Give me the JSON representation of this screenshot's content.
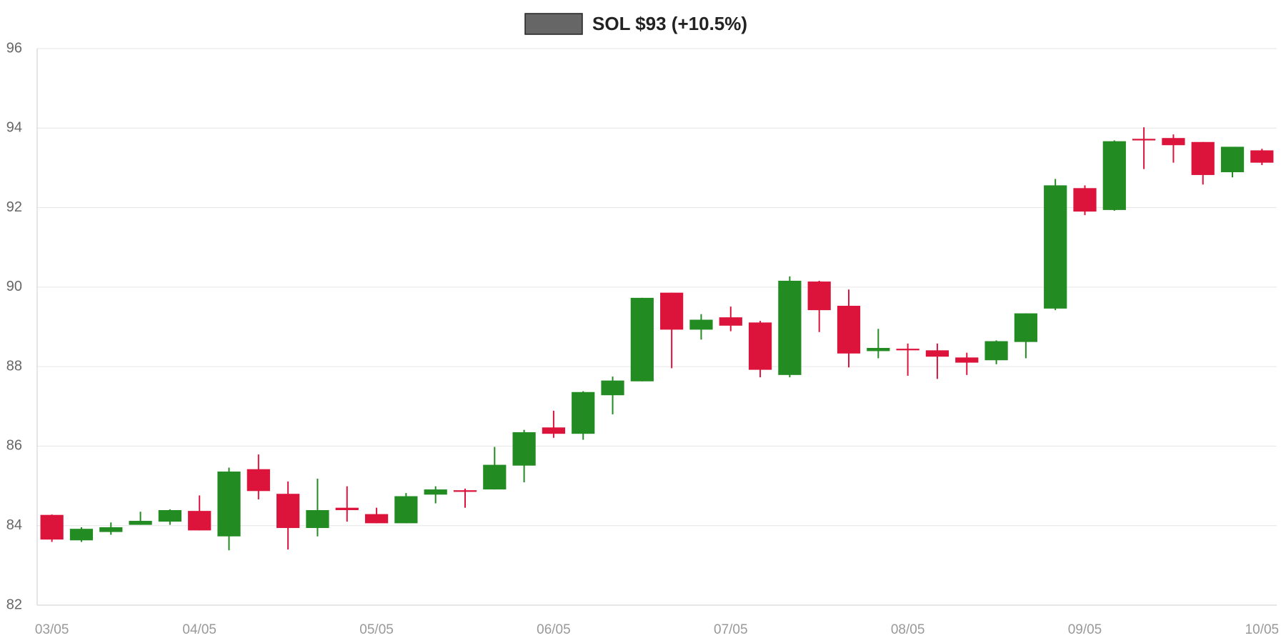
{
  "chart_data": {
    "type": "candlestick",
    "categories": [
      "03/05",
      null,
      null,
      null,
      null,
      "04/05",
      null,
      null,
      null,
      null,
      null,
      "05/05",
      null,
      null,
      null,
      null,
      null,
      "06/05",
      null,
      null,
      null,
      null,
      null,
      "07/05",
      null,
      null,
      null,
      null,
      null,
      "08/05",
      null,
      null,
      null,
      null,
      null,
      "09/05",
      null,
      null,
      null,
      null,
      null,
      "10/05"
    ],
    "series": [
      {
        "name": "SOL $93 (+10.5%)",
        "color": "#666666",
        "open": [
          84.27,
          83.63,
          83.84,
          84.02,
          84.1,
          84.37,
          83.73,
          85.42,
          84.8,
          83.94,
          84.45,
          84.29,
          84.06,
          84.78,
          84.89,
          84.91,
          85.51,
          86.47,
          86.31,
          87.28,
          87.63,
          89.86,
          88.93,
          89.24,
          89.11,
          87.79,
          90.14,
          89.53,
          88.39,
          88.45,
          88.41,
          88.23,
          88.16,
          88.62,
          89.46,
          92.49,
          91.94,
          93.73,
          93.75,
          93.65,
          92.89,
          93.44
        ],
        "high": [
          84.28,
          83.96,
          84.08,
          84.35,
          84.41,
          84.76,
          85.46,
          85.79,
          85.11,
          85.18,
          84.99,
          84.45,
          84.82,
          84.99,
          84.93,
          85.98,
          86.41,
          86.89,
          87.38,
          87.75,
          89.73,
          89.86,
          89.32,
          89.51,
          89.15,
          90.27,
          90.16,
          89.94,
          88.95,
          88.58,
          88.58,
          88.35,
          88.66,
          89.34,
          92.72,
          92.56,
          93.69,
          94.02,
          93.84,
          93.65,
          93.53,
          93.48
        ],
        "low": [
          83.59,
          83.59,
          83.77,
          84.02,
          84.02,
          83.88,
          83.38,
          84.66,
          83.4,
          83.73,
          84.1,
          84.06,
          84.06,
          84.56,
          84.45,
          84.91,
          85.09,
          86.21,
          86.16,
          86.8,
          87.63,
          87.96,
          88.68,
          88.89,
          87.73,
          87.73,
          88.87,
          87.98,
          88.21,
          87.77,
          87.69,
          87.79,
          88.06,
          88.21,
          89.42,
          91.81,
          91.92,
          92.97,
          93.13,
          92.58,
          92.76,
          93.07
        ],
        "close": [
          83.65,
          83.92,
          83.96,
          84.12,
          84.39,
          83.88,
          85.36,
          84.87,
          83.94,
          84.39,
          84.39,
          84.06,
          84.74,
          84.91,
          84.85,
          85.53,
          86.35,
          86.31,
          87.36,
          87.65,
          89.73,
          88.93,
          89.18,
          89.03,
          87.92,
          90.16,
          89.42,
          88.33,
          88.47,
          88.41,
          88.25,
          88.1,
          88.64,
          89.34,
          92.56,
          91.9,
          93.67,
          93.69,
          93.57,
          92.82,
          93.53,
          93.13
        ]
      }
    ],
    "up_color": "#228b22",
    "down_color": "#dc143c",
    "ylim": [
      82,
      96
    ],
    "yticks": [
      82,
      84,
      86,
      88,
      90,
      92,
      94,
      96
    ],
    "grid": true
  }
}
